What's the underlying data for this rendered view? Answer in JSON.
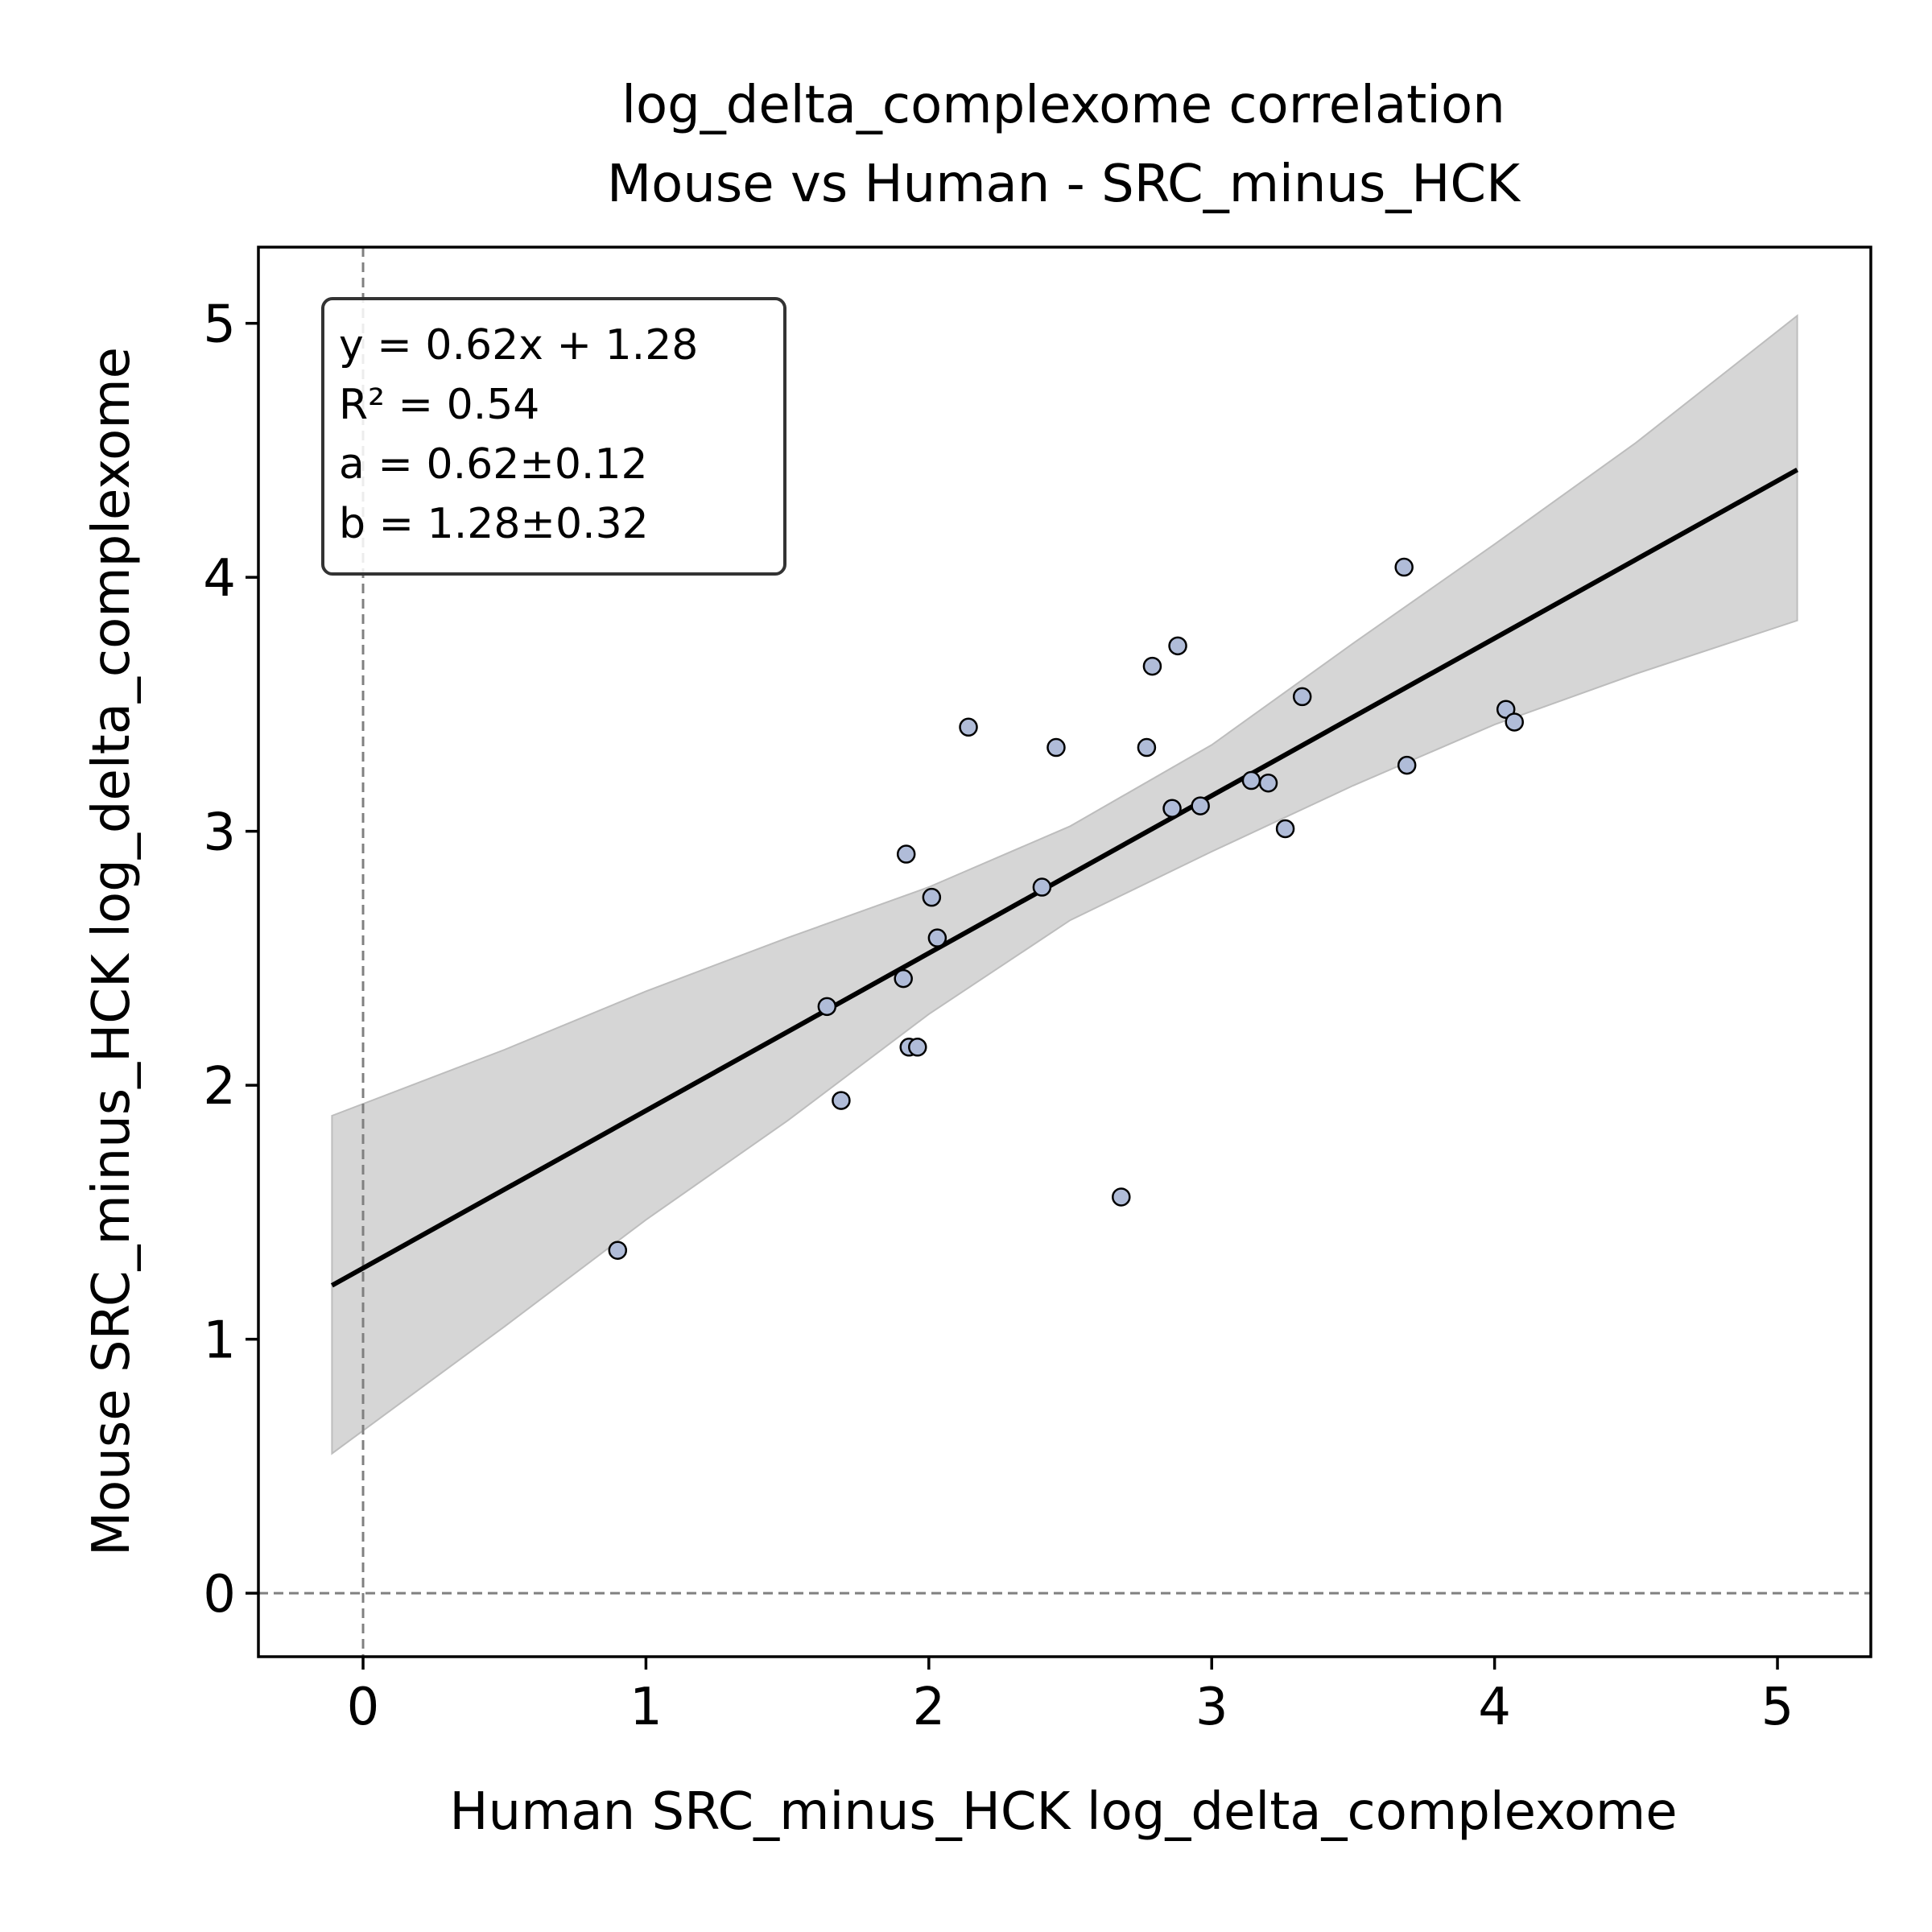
{
  "chart_data": {
    "type": "scatter",
    "title": "log_delta_complexome correlation",
    "subtitle": "Mouse vs Human - SRC_minus_HCK",
    "xlabel": "Human SRC_minus_HCK log_delta_complexome",
    "ylabel": "Mouse SRC_minus_HCK log_delta_complexome",
    "xlim": [
      -0.37,
      5.33
    ],
    "ylim": [
      -0.25,
      5.3
    ],
    "xticks": [
      "0",
      "1",
      "2",
      "3",
      "4",
      "5"
    ],
    "yticks": [
      "0",
      "1",
      "2",
      "3",
      "4",
      "5"
    ],
    "grid": false,
    "reference_lines": {
      "x": 0,
      "y": 0,
      "style": "dashed"
    },
    "fit": {
      "slope": 0.62,
      "intercept": 1.28,
      "x_range": [
        -0.11,
        5.07
      ]
    },
    "confidence_band": {
      "x": [
        -0.11,
        0.5,
        1.0,
        1.5,
        2.0,
        2.5,
        3.0,
        3.5,
        4.0,
        4.5,
        5.07
      ],
      "upper": [
        1.88,
        2.14,
        2.37,
        2.58,
        2.78,
        3.02,
        3.34,
        3.74,
        4.13,
        4.53,
        5.03
      ],
      "lower": [
        0.55,
        1.05,
        1.47,
        1.86,
        2.28,
        2.65,
        2.92,
        3.18,
        3.42,
        3.62,
        3.83
      ]
    },
    "points": [
      [
        0.9,
        1.35
      ],
      [
        1.64,
        2.31
      ],
      [
        1.69,
        1.94
      ],
      [
        1.91,
        2.42
      ],
      [
        1.92,
        2.91
      ],
      [
        1.93,
        2.15
      ],
      [
        1.96,
        2.15
      ],
      [
        2.01,
        2.74
      ],
      [
        2.03,
        2.58
      ],
      [
        2.14,
        3.41
      ],
      [
        2.4,
        2.78
      ],
      [
        2.45,
        3.33
      ],
      [
        2.68,
        1.56
      ],
      [
        2.77,
        3.33
      ],
      [
        2.79,
        3.65
      ],
      [
        2.86,
        3.09
      ],
      [
        2.88,
        3.73
      ],
      [
        2.96,
        3.1
      ],
      [
        3.14,
        3.2
      ],
      [
        3.2,
        3.19
      ],
      [
        3.26,
        3.01
      ],
      [
        3.32,
        3.53
      ],
      [
        3.68,
        4.04
      ],
      [
        3.69,
        3.26
      ],
      [
        4.04,
        3.48
      ],
      [
        4.07,
        3.43
      ]
    ],
    "marker_color": "#b0bcd8",
    "fit_color": "#000000",
    "band_color": "#d6d6d6",
    "annotation": {
      "lines": [
        "y = 0.62x + 1.28",
        "R² = 0.54",
        "a = 0.62±0.12",
        "b = 1.28±0.32"
      ],
      "placement": "top-left"
    }
  }
}
